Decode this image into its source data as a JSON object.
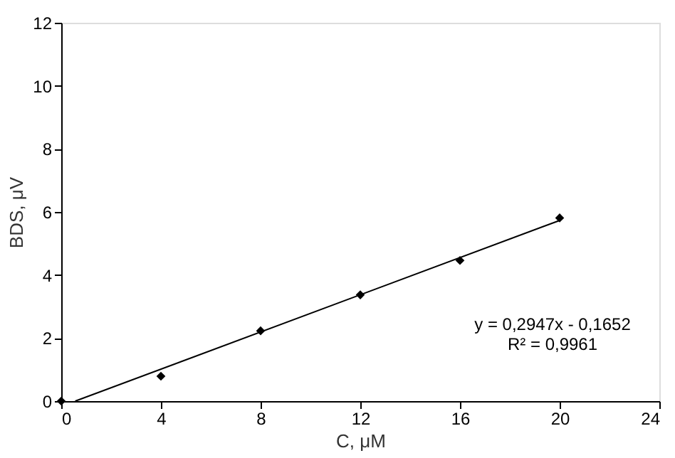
{
  "chart_data": {
    "type": "scatter",
    "xlabel": "C, μM",
    "ylabel": "BDS, μV",
    "xlim": [
      0,
      24
    ],
    "xticks": [
      0,
      4,
      8,
      12,
      16,
      20,
      24
    ],
    "ylim": [
      0,
      12
    ],
    "yticks": [
      0,
      2,
      4,
      6,
      8,
      10,
      12
    ],
    "grid": false,
    "series": [
      {
        "color": "#000000",
        "marker": "diamond",
        "x": [
          0,
          4,
          8,
          12,
          16,
          20
        ],
        "values": [
          0,
          0.79,
          2.23,
          3.37,
          4.46,
          5.81
        ]
      },
      {
        "type": "line",
        "color": "#000000",
        "marker": "none",
        "line_style": "solid",
        "x": [
          0.56,
          20
        ],
        "values": [
          0,
          5.73
        ]
      }
    ],
    "annotations": [
      "y = 0,2947x - 0,1652",
      "R² = 0,9961"
    ]
  }
}
